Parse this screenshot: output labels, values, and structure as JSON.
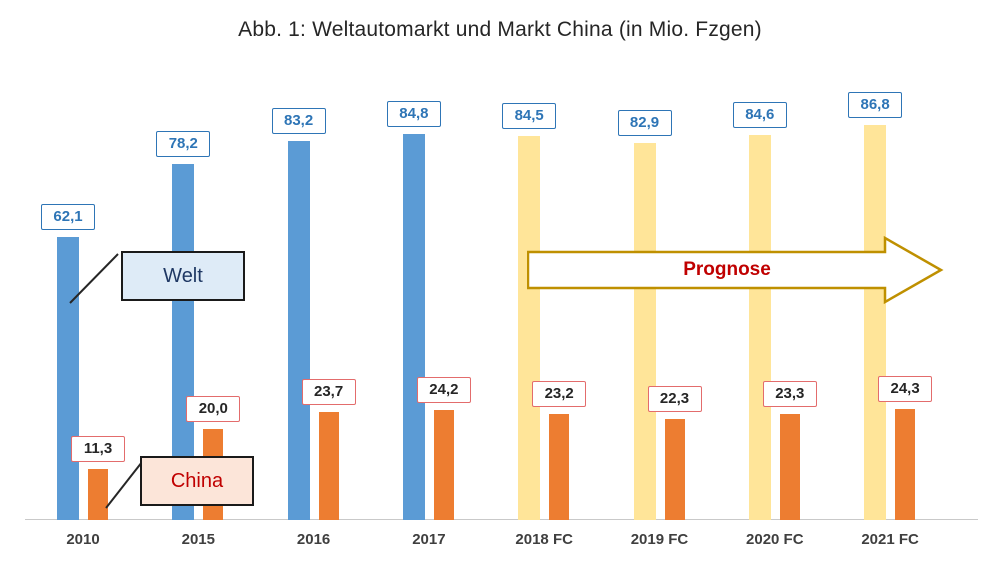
{
  "title": "Abb. 1: Weltautomarkt und Markt China (in Mio. Fzgen)",
  "annotations": {
    "welt_callout": "Welt",
    "china_callout": "China",
    "prognose": "Prognose"
  },
  "colors": {
    "welt_actual": "#5B9BD5",
    "welt_forecast": "#FFE599",
    "china": "#ED7D31",
    "welt_label_text": "#2E75B6",
    "welt_label_border": "#2E75B6",
    "china_label_text": "#262626",
    "china_label_border": "#E36C6C",
    "prognose_text": "#C00000",
    "arrow_border": "#BF9000",
    "welt_callout_bg": "#DEEBF7",
    "china_callout_bg": "#FCE5D9"
  },
  "chart_data": {
    "type": "bar",
    "title": "Abb. 1: Weltautomarkt und Markt China (in Mio. Fzgen)",
    "unit": "Mio. Fzgen",
    "categories": [
      "2010",
      "2015",
      "2016",
      "2017",
      "2018 FC",
      "2019 FC",
      "2020 FC",
      "2021 FC"
    ],
    "series": [
      {
        "name": "Welt",
        "values": [
          62.1,
          78.2,
          83.2,
          84.8,
          84.5,
          82.9,
          84.6,
          86.8
        ],
        "labels": [
          "62,1",
          "78,2",
          "83,2",
          "84,8",
          "84,5",
          "82,9",
          "84,6",
          "86,8"
        ]
      },
      {
        "name": "China",
        "values": [
          11.3,
          20.0,
          23.7,
          24.2,
          23.2,
          22.3,
          23.3,
          24.3
        ],
        "labels": [
          "11,3",
          "20,0",
          "23,7",
          "24,2",
          "23,2",
          "22,3",
          "23,3",
          "24,3"
        ]
      }
    ],
    "forecast_from_index": 4,
    "forecast_categories": [
      "2018 FC",
      "2019 FC",
      "2020 FC",
      "2021 FC"
    ],
    "annotation": "Prognose",
    "ylim": [
      0,
      90
    ],
    "grid": false,
    "legend_position": "callout-boxes"
  }
}
